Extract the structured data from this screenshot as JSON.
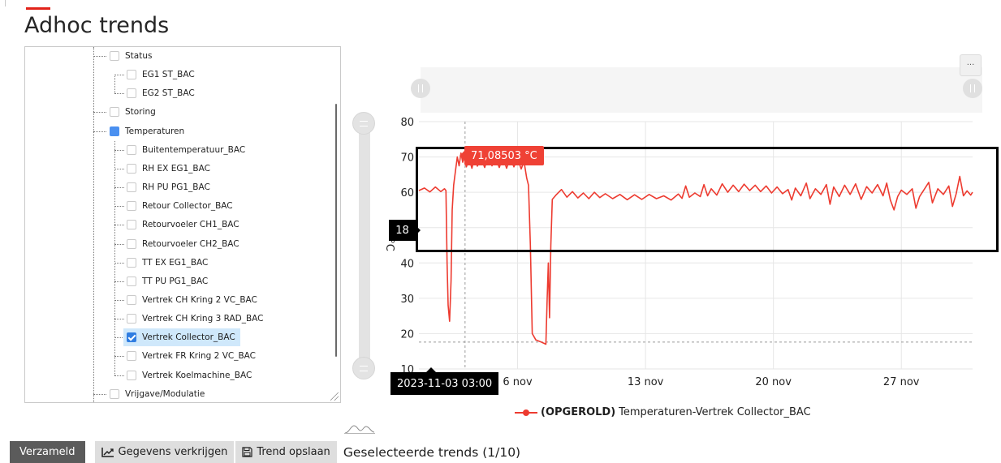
{
  "page": {
    "title": "Adhoc trends"
  },
  "tree": {
    "items": [
      {
        "label": "Status",
        "level": 1,
        "state": "empty"
      },
      {
        "label": "EG1 ST_BAC",
        "level": 2,
        "state": "empty"
      },
      {
        "label": "EG2 ST_BAC",
        "level": 2,
        "state": "empty"
      },
      {
        "label": "Storing",
        "level": 1,
        "state": "empty"
      },
      {
        "label": "Temperaturen",
        "level": 1,
        "state": "partial"
      },
      {
        "label": "Buitentemperatuur_BAC",
        "level": 2,
        "state": "empty"
      },
      {
        "label": "RH EX EG1_BAC",
        "level": 2,
        "state": "empty"
      },
      {
        "label": "RH PU PG1_BAC",
        "level": 2,
        "state": "empty"
      },
      {
        "label": "Retour Collector_BAC",
        "level": 2,
        "state": "empty"
      },
      {
        "label": "Retourvoeler CH1_BAC",
        "level": 2,
        "state": "empty"
      },
      {
        "label": "Retourvoeler CH2_BAC",
        "level": 2,
        "state": "empty"
      },
      {
        "label": "TT EX EG1_BAC",
        "level": 2,
        "state": "empty"
      },
      {
        "label": "TT PU PG1_BAC",
        "level": 2,
        "state": "empty"
      },
      {
        "label": "Vertrek CH Kring 2 VC_BAC",
        "level": 2,
        "state": "empty"
      },
      {
        "label": "Vertrek CH Kring 3 RAD_BAC",
        "level": 2,
        "state": "empty"
      },
      {
        "label": "Vertrek Collector_BAC",
        "level": 2,
        "state": "checked"
      },
      {
        "label": "Vertrek FR Kring 2 VC_BAC",
        "level": 2,
        "state": "empty"
      },
      {
        "label": "Vertrek Koelmachine_BAC",
        "level": 2,
        "state": "empty"
      },
      {
        "label": "Vrijgave/Modulatie",
        "level": 1,
        "state": "empty"
      }
    ]
  },
  "chart_data": {
    "type": "line",
    "ylabel": "°C",
    "ylim": [
      10,
      80
    ],
    "y_ticks": [
      "10",
      "20",
      "30",
      "40",
      "50",
      "60",
      "70",
      "80"
    ],
    "x_ticks": [
      {
        "label": "6 nov",
        "day": 6
      },
      {
        "label": "13 nov",
        "day": 13
      },
      {
        "label": "20 nov",
        "day": 20
      },
      {
        "label": "27 nov",
        "day": 27
      }
    ],
    "xlim_days": [
      0.6,
      30.9
    ],
    "grid": true,
    "series": [
      {
        "name": "(OPGEROLD) Temperaturen-Vertrek Collector_BAC",
        "color": "#ed3b30",
        "points": [
          [
            0.6,
            60.5
          ],
          [
            0.9,
            61.2
          ],
          [
            1.2,
            60.1
          ],
          [
            1.5,
            61.5
          ],
          [
            1.8,
            60.2
          ],
          [
            2.0,
            61.0
          ],
          [
            2.08,
            60.5
          ],
          [
            2.14,
            40.0
          ],
          [
            2.2,
            28.0
          ],
          [
            2.28,
            23.5
          ],
          [
            2.36,
            35.0
          ],
          [
            2.42,
            55.0
          ],
          [
            2.5,
            62.0
          ],
          [
            2.6,
            66.0
          ],
          [
            2.7,
            70.0
          ],
          [
            2.8,
            67.5
          ],
          [
            2.9,
            71.1
          ],
          [
            3.0,
            68.5
          ],
          [
            3.1,
            70.2
          ],
          [
            3.2,
            67.2
          ],
          [
            3.35,
            69.5
          ],
          [
            3.5,
            66.8
          ],
          [
            3.65,
            70.0
          ],
          [
            3.8,
            67.4
          ],
          [
            4.0,
            69.8
          ],
          [
            4.2,
            67.0
          ],
          [
            4.4,
            70.2
          ],
          [
            4.6,
            67.5
          ],
          [
            4.8,
            69.5
          ],
          [
            5.0,
            67.0
          ],
          [
            5.2,
            70.0
          ],
          [
            5.4,
            66.8
          ],
          [
            5.6,
            69.8
          ],
          [
            5.8,
            67.2
          ],
          [
            6.0,
            69.5
          ],
          [
            6.2,
            66.6
          ],
          [
            6.35,
            68.8
          ],
          [
            6.5,
            64.0
          ],
          [
            6.6,
            62.0
          ],
          [
            6.7,
            45.0
          ],
          [
            6.8,
            20.0
          ],
          [
            7.0,
            18.2
          ],
          [
            7.3,
            17.6
          ],
          [
            7.55,
            17.0
          ],
          [
            7.62,
            30.0
          ],
          [
            7.68,
            40.0
          ],
          [
            7.75,
            24.5
          ],
          [
            7.82,
            45.0
          ],
          [
            7.9,
            58.0
          ],
          [
            8.1,
            59.2
          ],
          [
            8.4,
            60.8
          ],
          [
            8.7,
            58.6
          ],
          [
            9.0,
            60.2
          ],
          [
            9.3,
            58.4
          ],
          [
            9.6,
            59.8
          ],
          [
            9.9,
            58.2
          ],
          [
            10.2,
            60.0
          ],
          [
            10.5,
            58.5
          ],
          [
            10.8,
            59.6
          ],
          [
            11.2,
            58.2
          ],
          [
            11.6,
            59.4
          ],
          [
            12.0,
            57.9
          ],
          [
            12.4,
            59.3
          ],
          [
            12.8,
            58.0
          ],
          [
            13.2,
            59.4
          ],
          [
            13.6,
            58.2
          ],
          [
            14.0,
            59.0
          ],
          [
            14.4,
            57.8
          ],
          [
            14.8,
            59.5
          ],
          [
            15.0,
            58.3
          ],
          [
            15.2,
            61.8
          ],
          [
            15.4,
            58.6
          ],
          [
            15.7,
            59.8
          ],
          [
            16.0,
            58.8
          ],
          [
            16.2,
            62.2
          ],
          [
            16.4,
            59.0
          ],
          [
            16.6,
            61.0
          ],
          [
            16.9,
            59.2
          ],
          [
            17.2,
            62.4
          ],
          [
            17.5,
            60.0
          ],
          [
            17.8,
            62.0
          ],
          [
            18.1,
            60.2
          ],
          [
            18.4,
            62.3
          ],
          [
            18.7,
            60.5
          ],
          [
            19.0,
            62.0
          ],
          [
            19.3,
            60.2
          ],
          [
            19.6,
            61.8
          ],
          [
            19.9,
            59.8
          ],
          [
            20.2,
            61.5
          ],
          [
            20.5,
            59.6
          ],
          [
            20.8,
            60.8
          ],
          [
            21.0,
            57.8
          ],
          [
            21.2,
            61.2
          ],
          [
            21.5,
            59.0
          ],
          [
            21.8,
            62.6
          ],
          [
            22.0,
            58.2
          ],
          [
            22.3,
            61.0
          ],
          [
            22.6,
            59.4
          ],
          [
            22.9,
            62.2
          ],
          [
            23.1,
            56.6
          ],
          [
            23.3,
            61.5
          ],
          [
            23.6,
            58.8
          ],
          [
            23.9,
            62.0
          ],
          [
            24.2,
            59.4
          ],
          [
            24.5,
            62.4
          ],
          [
            24.8,
            58.0
          ],
          [
            25.1,
            61.6
          ],
          [
            25.4,
            59.8
          ],
          [
            25.7,
            62.2
          ],
          [
            26.0,
            59.0
          ],
          [
            26.2,
            62.6
          ],
          [
            26.4,
            57.8
          ],
          [
            26.6,
            55.0
          ],
          [
            26.8,
            58.8
          ],
          [
            27.0,
            60.6
          ],
          [
            27.3,
            59.4
          ],
          [
            27.6,
            61.0
          ],
          [
            27.8,
            55.5
          ],
          [
            28.0,
            58.8
          ],
          [
            28.3,
            61.2
          ],
          [
            28.5,
            62.8
          ],
          [
            28.7,
            57.0
          ],
          [
            29.0,
            61.0
          ],
          [
            29.3,
            59.4
          ],
          [
            29.6,
            61.8
          ],
          [
            29.8,
            56.0
          ],
          [
            30.0,
            59.5
          ],
          [
            30.2,
            64.5
          ],
          [
            30.4,
            59.0
          ],
          [
            30.6,
            60.4
          ],
          [
            30.8,
            59.2
          ],
          [
            30.9,
            60.0
          ]
        ]
      }
    ],
    "crosshair": {
      "x_day": 3.125,
      "y_value": 17.6
    },
    "tooltip": "71,08503 °C",
    "y_readout": "18",
    "x_readout": "2023-11-03 03:00"
  },
  "legend": {
    "bold": "(OPGEROLD)",
    "text": "Temperaturen-Vertrek Collector_BAC"
  },
  "navigator": {
    "menu_label": "···"
  },
  "toolbar": {
    "collected_label": "Verzameld",
    "get_data_label": "Gegevens verkrijgen",
    "save_label": "Trend opslaan",
    "selected_label": "Geselecteerde trends (1/10)"
  }
}
